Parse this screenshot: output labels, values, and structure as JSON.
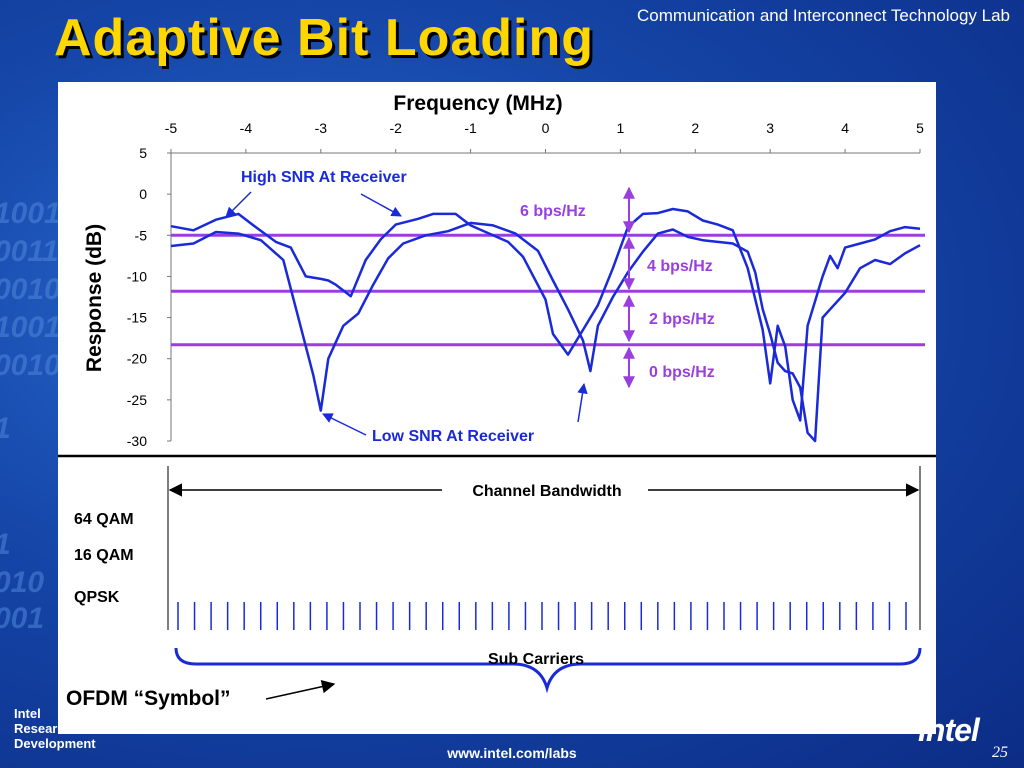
{
  "header": {
    "title": "Adaptive Bit Loading",
    "lab": "Communication and Interconnect Technology Lab"
  },
  "background_binary": [
    "1001",
    "0011",
    "0010",
    "1001",
    "0010",
    "1",
    "1",
    "010",
    "001"
  ],
  "chart_data": {
    "type": "line",
    "title": "Frequency (MHz)",
    "xlabel": "Frequency (MHz)",
    "ylabel": "Response (dB)",
    "xlim": [
      -5,
      5
    ],
    "ylim": [
      -30,
      5
    ],
    "x_ticks": [
      "-5",
      "-4",
      "-3",
      "-2",
      "-1",
      "0",
      "1",
      "2",
      "3",
      "4",
      "5"
    ],
    "y_ticks": [
      "5",
      "0",
      "-5",
      "-10",
      "-15",
      "-20",
      "-25",
      "-30"
    ],
    "series": [
      {
        "color": "#1a2ad8",
        "x": [
          -5,
          -4.7,
          -4.4,
          -4.1,
          -3.9,
          -3.6,
          -3.4,
          -3.2,
          -3.0,
          -2.9,
          -2.8,
          -2.6,
          -2.4,
          -2.2,
          -2.0,
          -1.7,
          -1.5,
          -1.2,
          -1.0,
          -0.8,
          -0.5,
          -0.3,
          0.0,
          0.1,
          0.3,
          0.5,
          0.7,
          0.9,
          1.1,
          1.3,
          1.5,
          1.7,
          1.9,
          2.1,
          2.3,
          2.5,
          2.7,
          2.9,
          3.0,
          3.1,
          3.2,
          3.3,
          3.4,
          3.5,
          3.6,
          3.7,
          3.8,
          3.9,
          4.0,
          4.2,
          4.4,
          4.6,
          4.8,
          5.0
        ],
        "y": [
          -3.9,
          -4.4,
          -3.1,
          -2.4,
          -3.8,
          -5.8,
          -6.5,
          -10.0,
          -10.3,
          -10.5,
          -11.0,
          -12.4,
          -8.0,
          -5.5,
          -3.7,
          -3.0,
          -2.4,
          -2.4,
          -3.8,
          -4.6,
          -5.8,
          -7.6,
          -12.8,
          -17.0,
          -19.5,
          -16.5,
          -13.5,
          -9.0,
          -4.0,
          -2.4,
          -2.3,
          -1.8,
          -2.1,
          -3.2,
          -3.7,
          -4.4,
          -9.0,
          -16.5,
          -23.0,
          -16.0,
          -18.5,
          -25.0,
          -27.5,
          -16.0,
          -13.0,
          -10.0,
          -7.5,
          -9.0,
          -6.5,
          -6.0,
          -5.5,
          -4.5,
          -4.0,
          -4.2
        ]
      },
      {
        "color": "#1a2ad8",
        "x": [
          -5,
          -4.7,
          -4.4,
          -4.1,
          -3.8,
          -3.5,
          -3.3,
          -3.1,
          -3.0,
          -2.9,
          -2.7,
          -2.5,
          -2.3,
          -2.1,
          -1.9,
          -1.6,
          -1.3,
          -1.0,
          -0.7,
          -0.4,
          -0.1,
          0.1,
          0.3,
          0.5,
          0.6,
          0.7,
          0.9,
          1.1,
          1.3,
          1.5,
          1.7,
          1.9,
          2.1,
          2.3,
          2.5,
          2.7,
          2.8,
          2.9,
          3.0,
          3.1,
          3.2,
          3.3,
          3.4,
          3.5,
          3.6,
          3.7,
          3.8,
          4.0,
          4.2,
          4.4,
          4.6,
          4.8,
          5.0
        ],
        "y": [
          -6.3,
          -6.0,
          -4.6,
          -4.8,
          -5.6,
          -8.0,
          -15.0,
          -22.0,
          -26.3,
          -20.0,
          -16.0,
          -14.5,
          -11.0,
          -7.8,
          -6.0,
          -5.0,
          -4.5,
          -3.5,
          -3.8,
          -4.8,
          -6.9,
          -10.5,
          -14.0,
          -17.8,
          -21.5,
          -16.0,
          -12.5,
          -9.5,
          -7.0,
          -4.8,
          -4.3,
          -5.2,
          -5.6,
          -5.8,
          -6.0,
          -7.0,
          -9.5,
          -14.0,
          -17.0,
          -20.5,
          -21.5,
          -21.8,
          -23.5,
          -29.0,
          -30.0,
          -15.0,
          -14.0,
          -12.0,
          -9.0,
          -8.0,
          -8.5,
          -7.2,
          -6.2
        ]
      }
    ],
    "thresholds": [
      {
        "y": -5.0,
        "color": "#9b3ee0"
      },
      {
        "y": -11.8,
        "color": "#9b3ee0"
      },
      {
        "y": -18.3,
        "color": "#9b3ee0"
      }
    ],
    "annotations": {
      "high_snr": "High SNR At Receiver",
      "low_snr": "Low SNR At Receiver",
      "bps6": "6 bps/Hz",
      "bps4": "4 bps/Hz",
      "bps2": "2 bps/Hz",
      "bps0": "0 bps/Hz"
    }
  },
  "ofdm": {
    "channel_bandwidth": "Channel Bandwidth",
    "qam64": "64 QAM",
    "qam16": "16 QAM",
    "qpsk": "QPSK",
    "sub_carriers": "Sub Carriers",
    "symbol": "OFDM “Symbol”",
    "subcarrier_count": 45
  },
  "footer": {
    "logo_lines": [
      "Intel",
      "Research &",
      "Development"
    ],
    "url": "www.intel.com/labs",
    "brand": "intel",
    "page": "25"
  }
}
